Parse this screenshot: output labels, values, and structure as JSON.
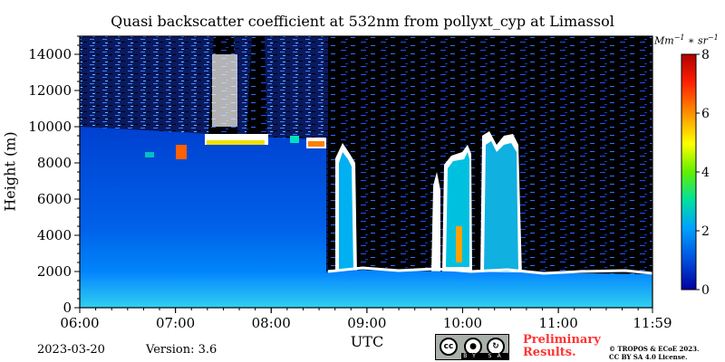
{
  "chart_data": {
    "type": "heatmap",
    "title": "Quasi backscatter coefficient at 532nm from pollyxt_cyp at Limassol",
    "xlabel": "UTC",
    "ylabel": "Height (m)",
    "x_tick_labels": [
      "06:00",
      "07:00",
      "08:00",
      "09:00",
      "10:00",
      "11:00",
      "11:59"
    ],
    "x_range": [
      "06:00",
      "11:59"
    ],
    "y_ticks": [
      0,
      2000,
      4000,
      6000,
      8000,
      10000,
      12000,
      14000
    ],
    "y_range": [
      0,
      15000
    ],
    "colorbar": {
      "unit": "Mm^-1 * sr^-1",
      "ticks": [
        0,
        2,
        4,
        6,
        8
      ],
      "range": [
        0,
        8
      ],
      "colors": [
        "#0000a0",
        "#0050e0",
        "#00a0ff",
        "#00e0a0",
        "#60f000",
        "#ffff00",
        "#ff9000",
        "#ff2000",
        "#b00000"
      ]
    },
    "features": {
      "boundary_layer_top_m": 1800,
      "dust_layer_m": [
        1800,
        9000
      ],
      "cirrus_layer_m": [
        8500,
        9700
      ],
      "cloud_gap_start": "08:36",
      "cloud_gap_end": "11:59"
    }
  },
  "footer": {
    "date": "2023-03-20",
    "version": "Version: 3.6",
    "license_badge": {
      "cc": "cc",
      "by": "BY",
      "sa": "SA"
    },
    "preliminary_line1": "Preliminary",
    "preliminary_line2": "Results.",
    "copyright_line1": "© TROPOS & ECoE 2023.",
    "copyright_line2": "CC BY SA 4.0 License."
  }
}
